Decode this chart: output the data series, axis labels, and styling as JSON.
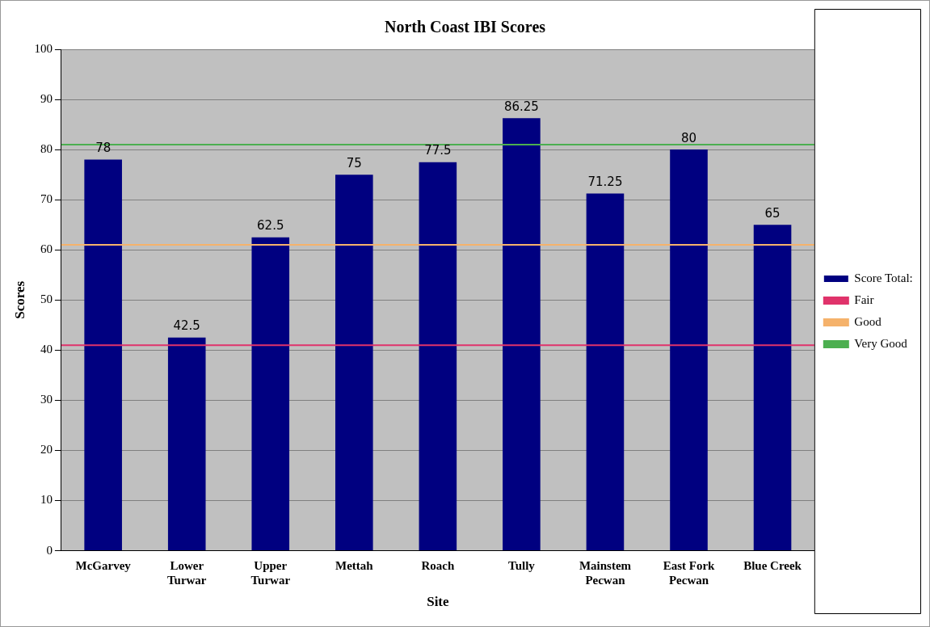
{
  "chart_data": {
    "type": "bar",
    "title": "North Coast IBI Scores",
    "xlabel": "Site",
    "ylabel": "Scores",
    "categories": [
      "McGarvey",
      "Lower\nTurwar",
      "Upper\nTurwar",
      "Mettah",
      "Roach",
      "Tully",
      "Mainstem\nPecwan",
      "East Fork\nPecwan",
      "Blue Creek"
    ],
    "series": [
      {
        "name": "Score Total:",
        "color": "#000080",
        "values": [
          78,
          42.5,
          62.5,
          75,
          77.5,
          86.25,
          71.25,
          80,
          65
        ]
      }
    ],
    "ylim": [
      0,
      100
    ],
    "yticks": [
      0,
      10,
      20,
      30,
      40,
      50,
      60,
      70,
      80,
      90,
      100
    ],
    "grid": "y",
    "data_labels": true,
    "legend": "right",
    "ref_lines": [
      {
        "axis": "y",
        "value": 41,
        "label": "Fair",
        "color": "#e0336b"
      },
      {
        "axis": "y",
        "value": 61,
        "label": "Good",
        "color": "#f5b26b"
      },
      {
        "axis": "y",
        "value": 81,
        "label": "Very Good",
        "color": "#4caf50"
      }
    ]
  }
}
